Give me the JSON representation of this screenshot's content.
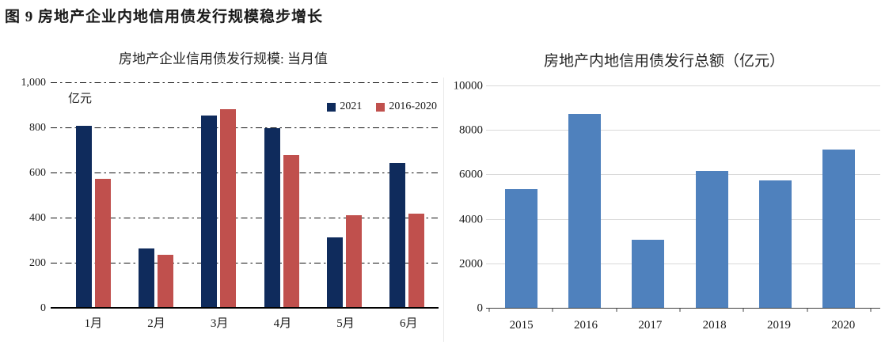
{
  "heading": "图 9 房地产企业内地信用债发行规模稳步增长",
  "chart_data": [
    {
      "type": "bar",
      "title": "房地产企业信用债发行规模: 当月值",
      "unit_label": "亿元",
      "categories": [
        "1月",
        "2月",
        "3月",
        "4月",
        "5月",
        "6月"
      ],
      "series": [
        {
          "name": "2021",
          "color": "#0F2B5C",
          "values": [
            810,
            265,
            855,
            800,
            315,
            645
          ]
        },
        {
          "name": "2016-2020",
          "color": "#C0504D",
          "values": [
            575,
            240,
            885,
            680,
            415,
            420
          ]
        }
      ],
      "ylim": [
        0,
        1000
      ],
      "yticks": [
        0,
        200,
        400,
        600,
        800,
        1000
      ],
      "ytick_labels": [
        "0",
        "200",
        "400",
        "600",
        "800",
        "1,000"
      ],
      "grid": "dash-dot-black",
      "legend_position": "top-right",
      "show_legend": true
    },
    {
      "type": "bar",
      "title": "房地产内地信用债发行总额（亿元）",
      "categories": [
        "2015",
        "2016",
        "2017",
        "2018",
        "2019",
        "2020"
      ],
      "series": [
        {
          "color": "#4F81BD",
          "values": [
            5380,
            8750,
            3100,
            6200,
            5750,
            7150
          ]
        }
      ],
      "ylim": [
        0,
        10000
      ],
      "yticks": [
        0,
        2000,
        4000,
        6000,
        8000,
        10000
      ],
      "ytick_labels": [
        "0",
        "2000",
        "4000",
        "6000",
        "8000",
        "10000"
      ],
      "grid": "solid-light-gray",
      "legend_position": "none",
      "show_legend": false,
      "axis_category_ticks": true
    }
  ]
}
